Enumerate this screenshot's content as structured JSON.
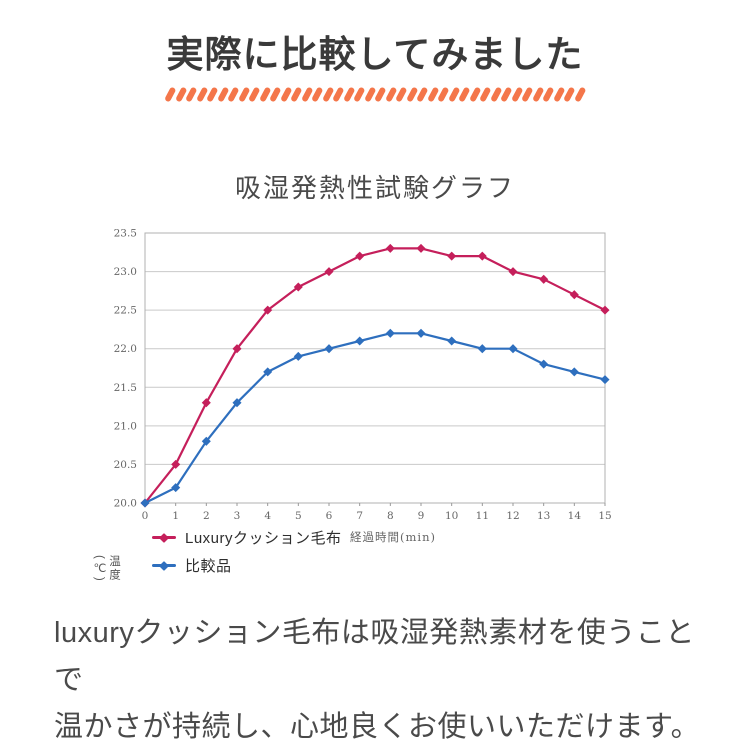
{
  "header": {
    "title": "実際に比較してみました",
    "accent_color": "#F4764A"
  },
  "chart_data": {
    "type": "line",
    "title": "吸湿発熱性試験グラフ",
    "xlabel": "経過時間(min)",
    "ylabel": "温度(℃)",
    "x": [
      0,
      1,
      2,
      3,
      4,
      5,
      6,
      7,
      8,
      9,
      10,
      11,
      12,
      13,
      14,
      15
    ],
    "ylim": [
      20.0,
      23.5
    ],
    "ytick_step": 0.5,
    "grid": "horizontal",
    "legend_position": "bottom-left",
    "series": [
      {
        "name": "Luxuryクッション毛布",
        "color": "#C51F5B",
        "values": [
          20.0,
          20.5,
          21.3,
          22.0,
          22.5,
          22.8,
          23.0,
          23.2,
          23.3,
          23.3,
          23.2,
          23.2,
          23.0,
          22.9,
          22.7,
          22.5
        ]
      },
      {
        "name": "比較品",
        "color": "#2E6FBE",
        "values": [
          20.0,
          20.2,
          20.8,
          21.3,
          21.7,
          21.9,
          22.0,
          22.1,
          22.2,
          22.2,
          22.1,
          22.0,
          22.0,
          21.8,
          21.7,
          21.6
        ]
      }
    ],
    "frame_color": "#b0b0b0",
    "gridline_color": "#c9c9c9"
  },
  "description": {
    "line1": "luxuryクッション毛布は吸湿発熱素材を使うことで",
    "line2": "温かさが持続し、心地良くお使いいただけます。"
  }
}
